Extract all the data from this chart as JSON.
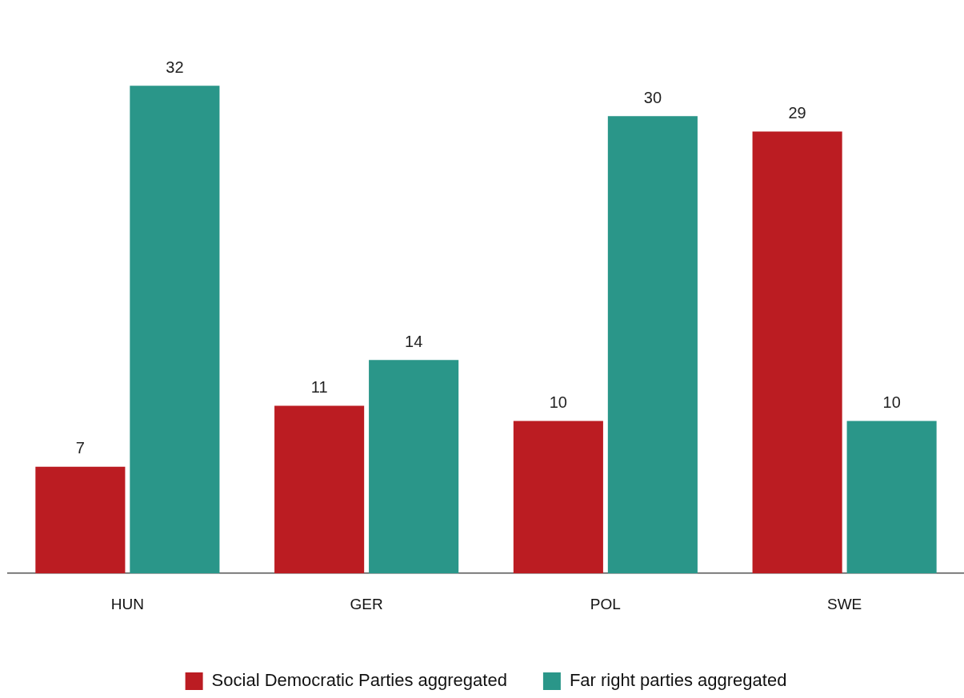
{
  "chart_data": {
    "type": "bar",
    "categories": [
      "HUN",
      "GER",
      "POL",
      "SWE"
    ],
    "series": [
      {
        "name": "Social Democratic Parties aggregated",
        "color": "#bb1c22",
        "values": [
          7,
          11,
          10,
          29
        ]
      },
      {
        "name": "Far right parties aggregated",
        "color": "#2a9689",
        "values": [
          32,
          14,
          30,
          10
        ]
      }
    ],
    "data_labels": true,
    "legend": "bottom",
    "grid": false,
    "tick_labels": "x"
  }
}
